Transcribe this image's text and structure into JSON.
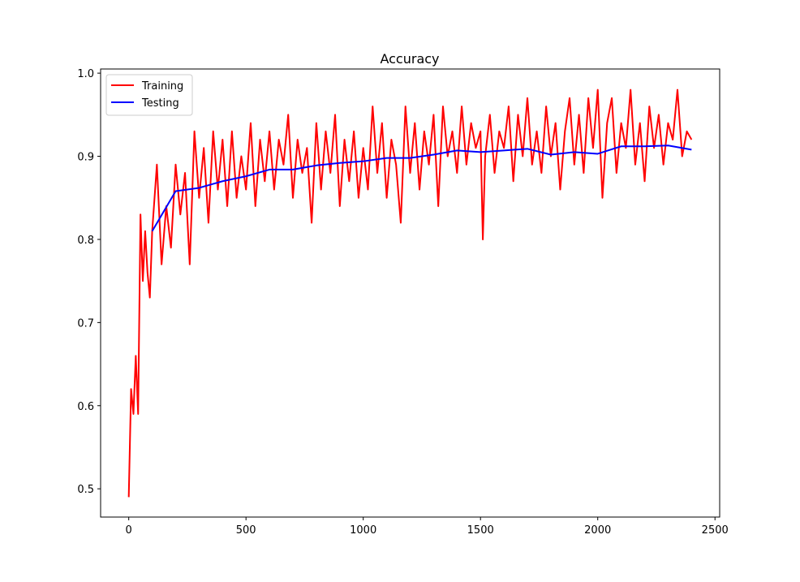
{
  "chart_data": {
    "type": "line",
    "title": "Accuracy",
    "xlim": [
      -120,
      2520
    ],
    "xticks": [
      0,
      500,
      1000,
      1500,
      2000,
      2500
    ],
    "ylim": [
      0.466,
      1.005
    ],
    "yticks": [
      0.5,
      0.6,
      0.7,
      0.8,
      0.9,
      {
        "value": 1.0,
        "label": "1.0"
      }
    ],
    "legend": "upper left",
    "series": [
      {
        "name": "Training",
        "color": "#ff0000",
        "x": [
          0,
          10,
          20,
          30,
          40,
          50,
          60,
          70,
          80,
          90,
          100,
          120,
          140,
          160,
          180,
          200,
          220,
          240,
          260,
          280,
          300,
          320,
          340,
          360,
          380,
          400,
          420,
          440,
          460,
          480,
          500,
          520,
          540,
          560,
          580,
          600,
          620,
          640,
          660,
          680,
          700,
          720,
          740,
          760,
          780,
          800,
          820,
          840,
          860,
          880,
          900,
          920,
          940,
          960,
          980,
          1000,
          1020,
          1040,
          1060,
          1080,
          1100,
          1120,
          1140,
          1160,
          1180,
          1200,
          1220,
          1240,
          1260,
          1280,
          1300,
          1320,
          1340,
          1360,
          1380,
          1400,
          1420,
          1440,
          1460,
          1480,
          1500,
          1510,
          1520,
          1540,
          1560,
          1580,
          1600,
          1620,
          1640,
          1660,
          1680,
          1700,
          1720,
          1740,
          1760,
          1780,
          1800,
          1820,
          1840,
          1860,
          1880,
          1900,
          1920,
          1940,
          1960,
          1980,
          2000,
          2020,
          2040,
          2060,
          2080,
          2100,
          2120,
          2140,
          2160,
          2180,
          2200,
          2220,
          2240,
          2260,
          2280,
          2300,
          2320,
          2340,
          2360,
          2380,
          2400
        ],
        "values": [
          0.49,
          0.62,
          0.59,
          0.66,
          0.59,
          0.83,
          0.75,
          0.81,
          0.76,
          0.73,
          0.81,
          0.89,
          0.77,
          0.84,
          0.79,
          0.89,
          0.83,
          0.88,
          0.77,
          0.93,
          0.85,
          0.91,
          0.82,
          0.93,
          0.86,
          0.92,
          0.84,
          0.93,
          0.85,
          0.9,
          0.86,
          0.94,
          0.84,
          0.92,
          0.87,
          0.93,
          0.86,
          0.92,
          0.89,
          0.95,
          0.85,
          0.92,
          0.88,
          0.91,
          0.82,
          0.94,
          0.86,
          0.93,
          0.88,
          0.95,
          0.84,
          0.92,
          0.87,
          0.93,
          0.85,
          0.91,
          0.86,
          0.96,
          0.88,
          0.94,
          0.85,
          0.92,
          0.89,
          0.82,
          0.96,
          0.88,
          0.94,
          0.86,
          0.93,
          0.89,
          0.95,
          0.84,
          0.96,
          0.9,
          0.93,
          0.88,
          0.96,
          0.89,
          0.94,
          0.91,
          0.93,
          0.8,
          0.9,
          0.95,
          0.88,
          0.93,
          0.91,
          0.96,
          0.87,
          0.95,
          0.9,
          0.97,
          0.89,
          0.93,
          0.88,
          0.96,
          0.9,
          0.94,
          0.86,
          0.93,
          0.97,
          0.89,
          0.95,
          0.88,
          0.97,
          0.91,
          0.98,
          0.85,
          0.94,
          0.97,
          0.88,
          0.94,
          0.91,
          0.98,
          0.89,
          0.94,
          0.87,
          0.96,
          0.91,
          0.95,
          0.89,
          0.94,
          0.92,
          0.98,
          0.9,
          0.93,
          0.92
        ]
      },
      {
        "name": "Testing",
        "color": "#0000ff",
        "x": [
          100,
          200,
          300,
          400,
          500,
          600,
          700,
          800,
          900,
          1000,
          1100,
          1200,
          1300,
          1400,
          1500,
          1600,
          1700,
          1800,
          1900,
          2000,
          2100,
          2200,
          2300,
          2400
        ],
        "values": [
          0.81,
          0.858,
          0.862,
          0.87,
          0.876,
          0.884,
          0.884,
          0.889,
          0.892,
          0.894,
          0.898,
          0.898,
          0.902,
          0.907,
          0.905,
          0.907,
          0.909,
          0.902,
          0.905,
          0.903,
          0.912,
          0.912,
          0.913,
          0.908
        ]
      }
    ]
  }
}
